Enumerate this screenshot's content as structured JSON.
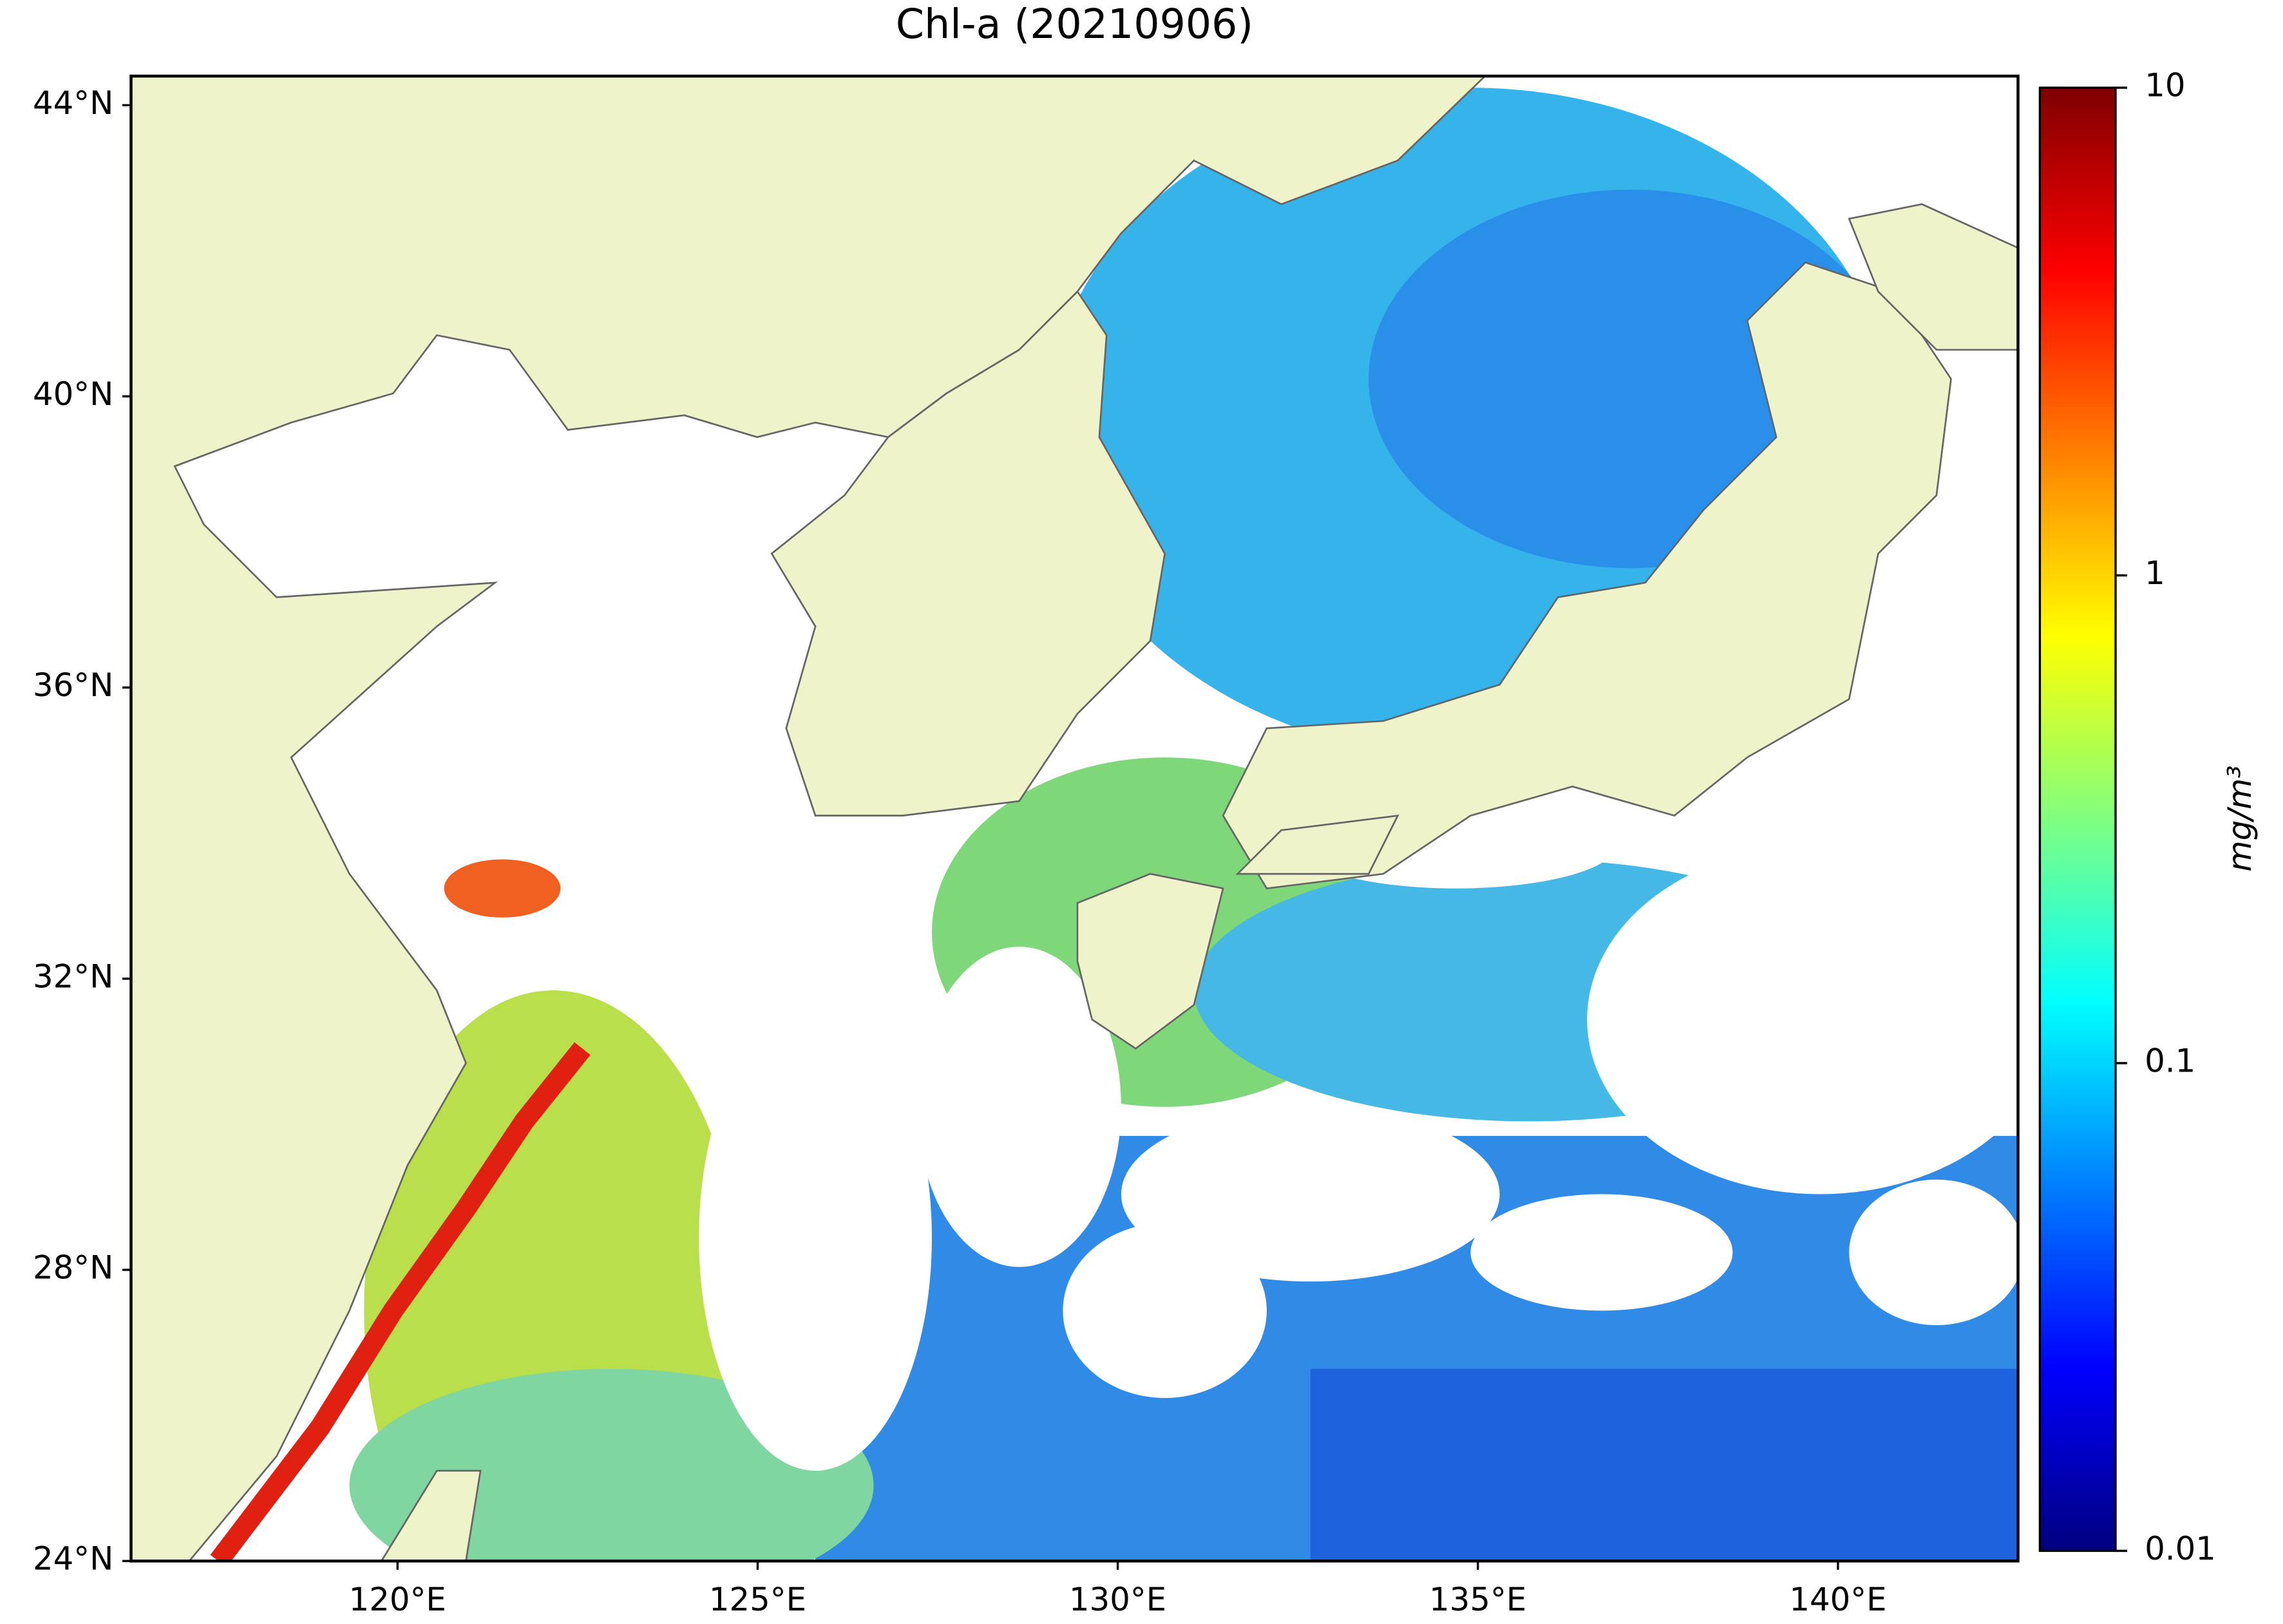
{
  "chart_data": {
    "type": "map",
    "title": "Chl-a (20210906)",
    "xlim": [
      116.3,
      142.5
    ],
    "ylim": [
      24,
      44.4
    ],
    "xticks": [
      {
        "value": 120,
        "label": "120°E"
      },
      {
        "value": 125,
        "label": "125°E"
      },
      {
        "value": 130,
        "label": "130°E"
      },
      {
        "value": 135,
        "label": "135°E"
      },
      {
        "value": 140,
        "label": "140°E"
      }
    ],
    "yticks": [
      {
        "value": 24,
        "label": "24°N"
      },
      {
        "value": 28,
        "label": "28°N"
      },
      {
        "value": 32,
        "label": "32°N"
      },
      {
        "value": 36,
        "label": "36°N"
      },
      {
        "value": 40,
        "label": "40°N"
      },
      {
        "value": 44,
        "label": "44°N"
      }
    ],
    "colorbar": {
      "label": "mg/m³",
      "lim": [
        0.01,
        10
      ],
      "log": true,
      "colormap": "jet",
      "ticks": [
        0.01,
        0.1,
        1,
        10
      ]
    }
  }
}
